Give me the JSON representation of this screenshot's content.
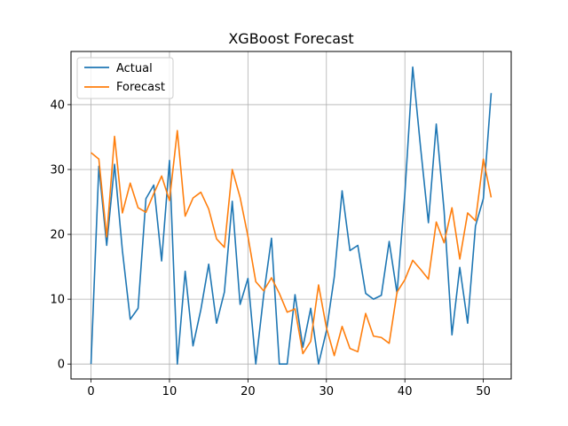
{
  "chart_data": {
    "type": "line",
    "title": "XGBoost Forecast",
    "xlabel": "",
    "ylabel": "",
    "xlim": [
      -2.55,
      53.55
    ],
    "ylim": [
      -2.3,
      48.2
    ],
    "xticks": [
      0,
      10,
      20,
      30,
      40,
      50
    ],
    "yticks": [
      0,
      10,
      20,
      30,
      40
    ],
    "grid": true,
    "legend_position": "top-left",
    "x": [
      0,
      1,
      2,
      3,
      4,
      5,
      6,
      7,
      8,
      9,
      10,
      11,
      12,
      13,
      14,
      15,
      16,
      17,
      18,
      19,
      20,
      21,
      22,
      23,
      24,
      25,
      26,
      27,
      28,
      29,
      30,
      31,
      32,
      33,
      34,
      35,
      36,
      37,
      38,
      39,
      40,
      41,
      42,
      43,
      44,
      45,
      46,
      47,
      48,
      49,
      50,
      51
    ],
    "series": [
      {
        "name": "Actual",
        "color": "#1f77b4",
        "values": [
          0.0,
          30.5,
          18.3,
          30.8,
          17.5,
          6.9,
          8.6,
          25.5,
          27.6,
          15.9,
          31.4,
          0.0,
          14.3,
          2.8,
          8.4,
          15.4,
          6.3,
          11.1,
          25.1,
          9.2,
          13.2,
          0.0,
          10.6,
          19.4,
          0.0,
          0.0,
          10.7,
          2.6,
          8.6,
          0.0,
          5.1,
          13.4,
          26.7,
          17.5,
          18.3,
          10.9,
          10.0,
          10.6,
          18.9,
          10.9,
          26.3,
          45.8,
          33.4,
          21.8,
          37.0,
          23.6,
          4.5,
          14.9,
          6.3,
          21.3,
          25.5,
          41.8
        ]
      },
      {
        "name": "Forecast",
        "color": "#ff7f0e",
        "values": [
          32.6,
          31.6,
          19.6,
          35.1,
          23.3,
          27.9,
          24.1,
          23.4,
          26.3,
          29.0,
          25.2,
          36.0,
          22.8,
          25.6,
          26.5,
          23.9,
          19.3,
          18.0,
          30.0,
          25.7,
          19.7,
          12.7,
          11.3,
          13.3,
          10.9,
          8.0,
          8.5,
          1.6,
          3.5,
          12.2,
          5.6,
          1.3,
          5.8,
          2.4,
          1.9,
          7.8,
          4.3,
          4.1,
          3.2,
          11.1,
          13.0,
          16.0,
          14.6,
          13.1,
          21.9,
          18.7,
          24.1,
          16.2,
          23.3,
          22.1,
          31.6,
          25.7
        ]
      }
    ]
  }
}
